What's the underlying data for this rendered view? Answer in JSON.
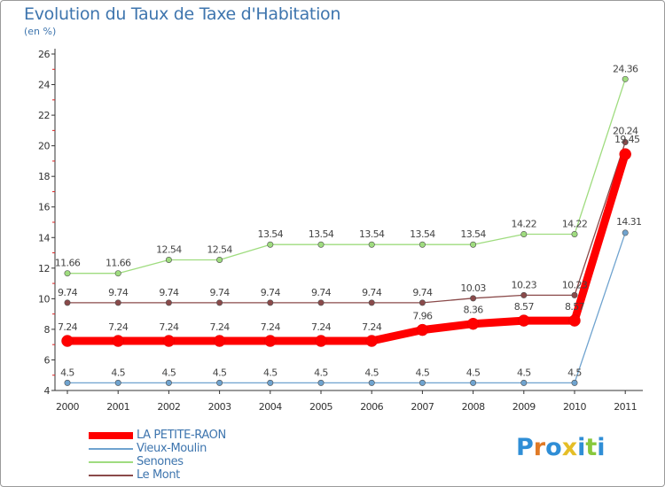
{
  "header": {
    "title": "Evolution du Taux de Taxe d'Habitation",
    "subtitle": "(en %)"
  },
  "logo": {
    "text": "Proxiti",
    "letter_colors": [
      "#2f8ed6",
      "#e07a26",
      "#2f8ed6",
      "#e5be27",
      "#2f8ed6",
      "#88c83d",
      "#2f8ed6"
    ]
  },
  "chart_data": {
    "type": "line",
    "title": "Evolution du Taux de Taxe d'Habitation",
    "subtitle": "(en %)",
    "xlabel": "",
    "ylabel": "",
    "x": [
      "2000",
      "2001",
      "2002",
      "2003",
      "2004",
      "2005",
      "2006",
      "2007",
      "2008",
      "2009",
      "2010",
      "2011"
    ],
    "y_ticks": [
      "4",
      "6",
      "8",
      "10",
      "12",
      "14",
      "16",
      "18",
      "20",
      "22",
      "24",
      "26"
    ],
    "ylim": [
      4,
      26
    ],
    "grid": false,
    "legend_position": "bottom-left",
    "series": [
      {
        "name": "LA PETITE-RAON",
        "color": "#ff0000",
        "values": [
          7.24,
          7.24,
          7.24,
          7.24,
          7.24,
          7.24,
          7.24,
          7.96,
          8.36,
          8.57,
          8.57,
          19.45
        ],
        "labels": [
          "7.24",
          "7.24",
          "7.24",
          "7.24",
          "7.24",
          "7.24",
          "7.24",
          "7.96",
          "8.36",
          "8.57",
          "8.57",
          "19.45"
        ]
      },
      {
        "name": "Vieux-Moulin",
        "color": "#6fa3cf",
        "values": [
          4.5,
          4.5,
          4.5,
          4.5,
          4.5,
          4.5,
          4.5,
          4.5,
          4.5,
          4.5,
          4.5,
          14.31
        ],
        "labels": [
          "4.5",
          "4.5",
          "4.5",
          "4.5",
          "4.5",
          "4.5",
          "4.5",
          "4.5",
          "4.5",
          "4.5",
          "4.5",
          "14.31"
        ]
      },
      {
        "name": "Senones",
        "color": "#9fdc7f",
        "values": [
          11.66,
          11.66,
          12.54,
          12.54,
          13.54,
          13.54,
          13.54,
          13.54,
          13.54,
          14.22,
          14.22,
          24.36
        ],
        "labels": [
          "11.66",
          "11.66",
          "12.54",
          "12.54",
          "13.54",
          "13.54",
          "13.54",
          "13.54",
          "13.54",
          "14.22",
          "14.22",
          "24.36"
        ]
      },
      {
        "name": "Le Mont",
        "color": "#8a4a4a",
        "values": [
          9.74,
          9.74,
          9.74,
          9.74,
          9.74,
          9.74,
          9.74,
          9.74,
          10.03,
          10.23,
          10.23,
          20.24
        ],
        "labels": [
          "9.74",
          "9.74",
          "9.74",
          "9.74",
          "9.74",
          "9.74",
          "9.74",
          "9.74",
          "10.03",
          "10.23",
          "10.23",
          "20.24"
        ]
      }
    ]
  }
}
